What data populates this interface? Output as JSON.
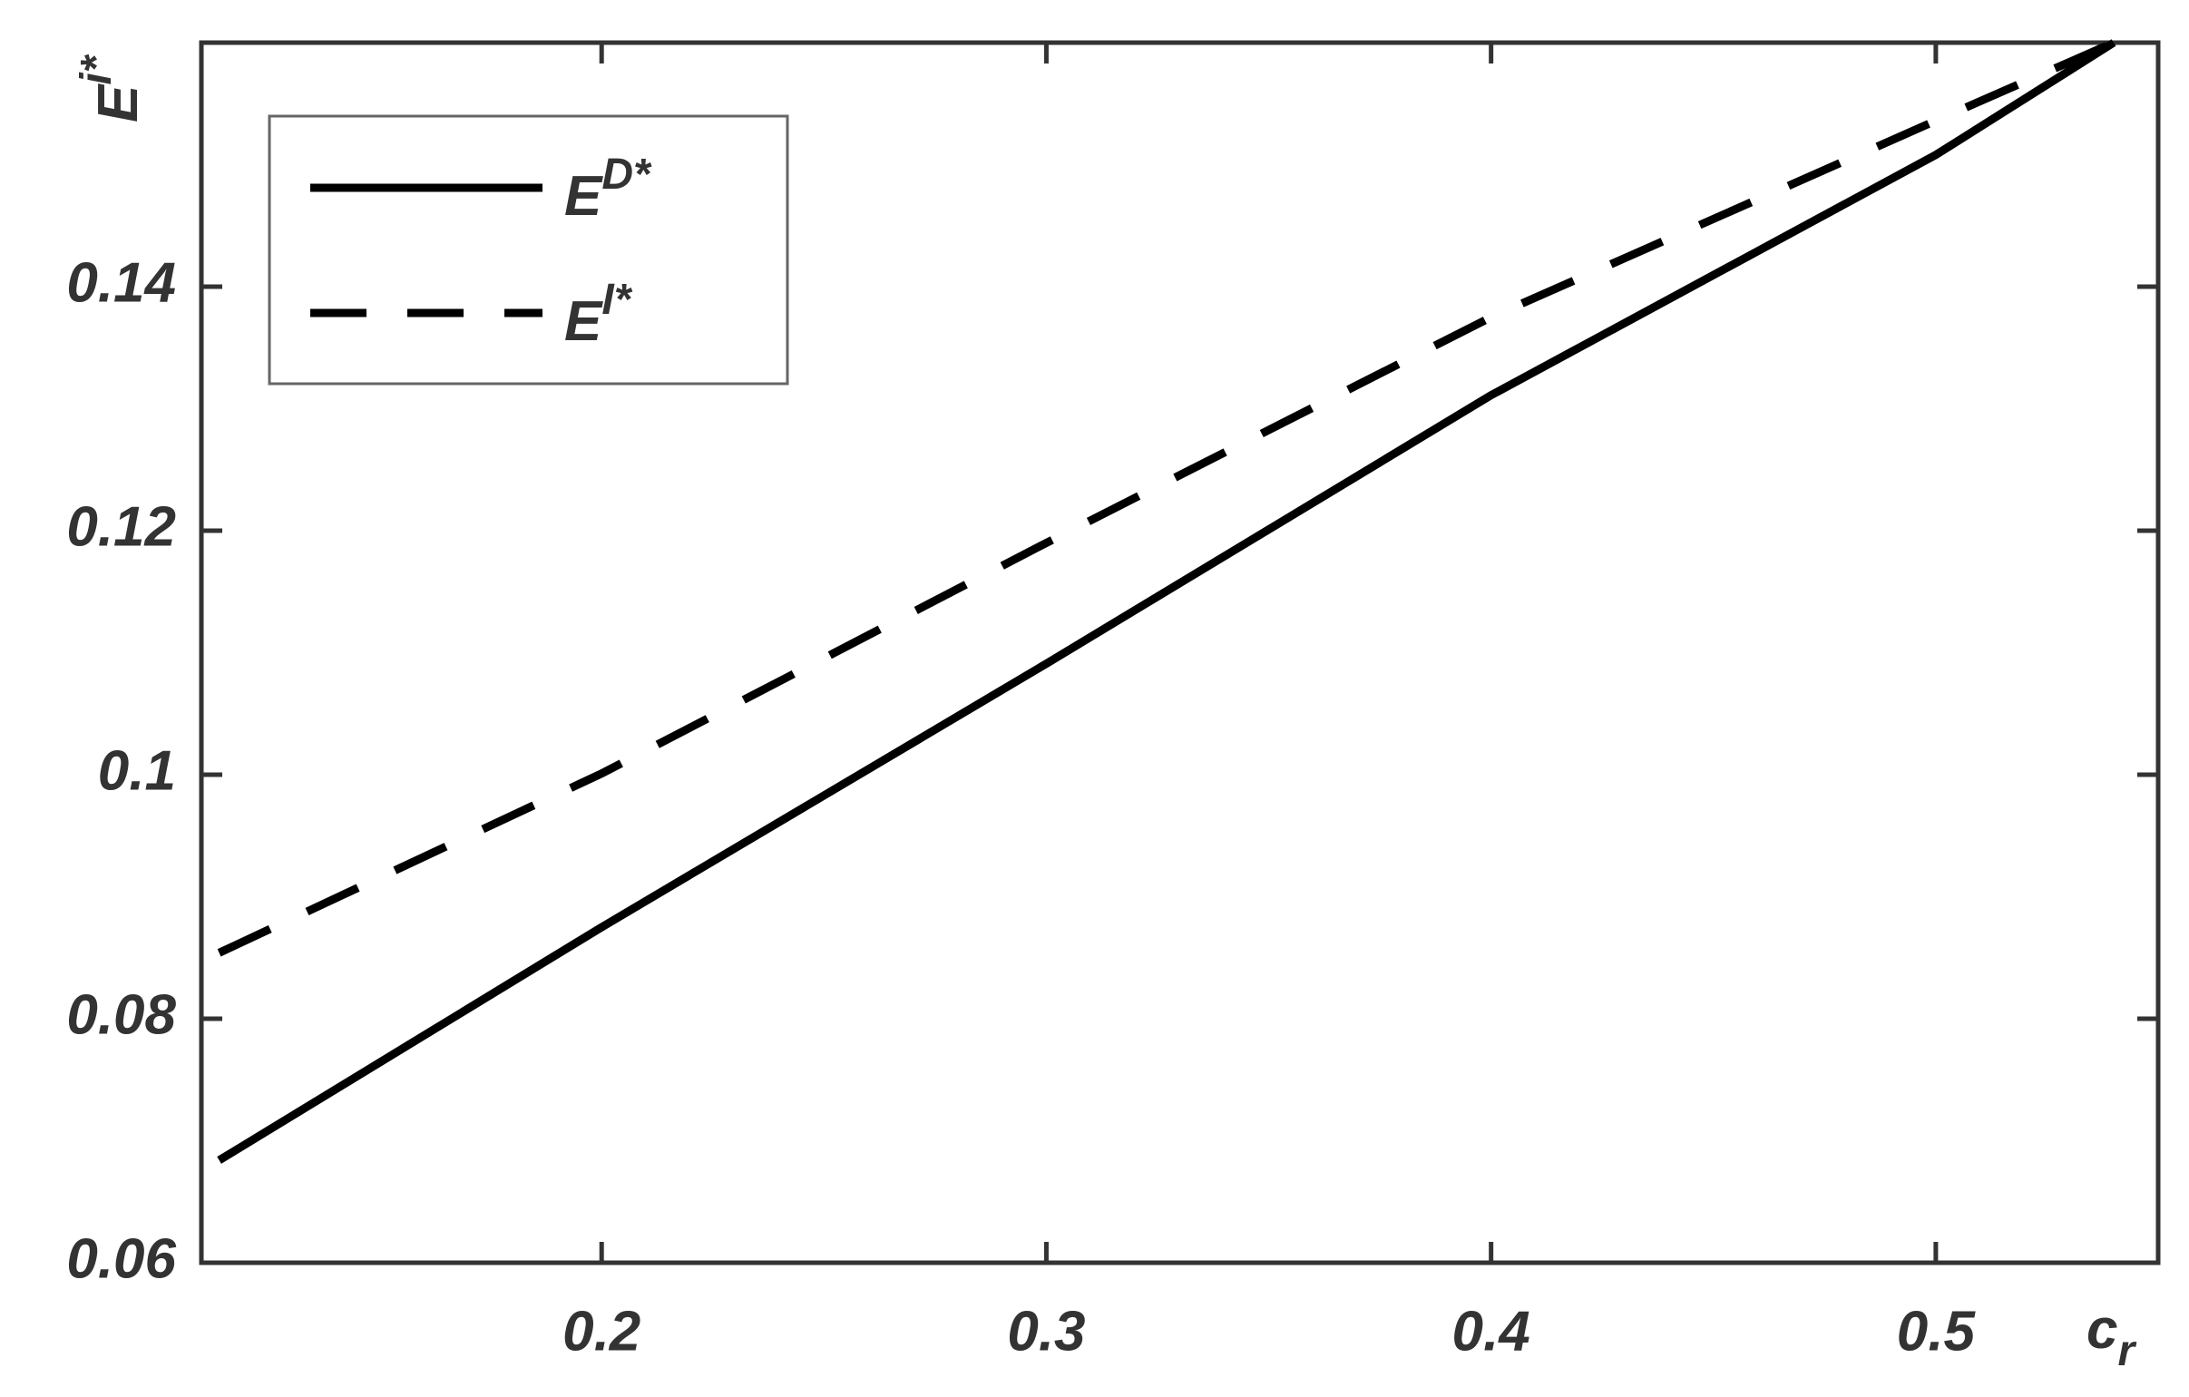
{
  "chart_data": {
    "type": "line",
    "xlabel": "c",
    "xlabel_sub": "r",
    "ylabel": "E",
    "ylabel_sup": "i*",
    "x": [
      0.114,
      0.2,
      0.3,
      0.4,
      0.5,
      0.54
    ],
    "series": [
      {
        "name": "E",
        "name_sup": "D*",
        "color": "#000000",
        "dash": false,
        "values": [
          0.0684,
          0.0875,
          0.1091,
          0.1311,
          0.1508,
          0.16
        ]
      },
      {
        "name": "E",
        "name_sup": "I*",
        "color": "#000000",
        "dash": true,
        "values": [
          0.0854,
          0.1001,
          0.119,
          0.1375,
          0.1536,
          0.16
        ]
      }
    ],
    "xlim": [
      0.11,
      0.55
    ],
    "ylim": [
      0.06,
      0.16
    ],
    "xticks": [
      0.2,
      0.3,
      0.4,
      0.5
    ],
    "yticks": [
      0.06,
      0.08,
      0.1,
      0.12,
      0.14
    ],
    "grid": false,
    "legend": "upper left"
  }
}
